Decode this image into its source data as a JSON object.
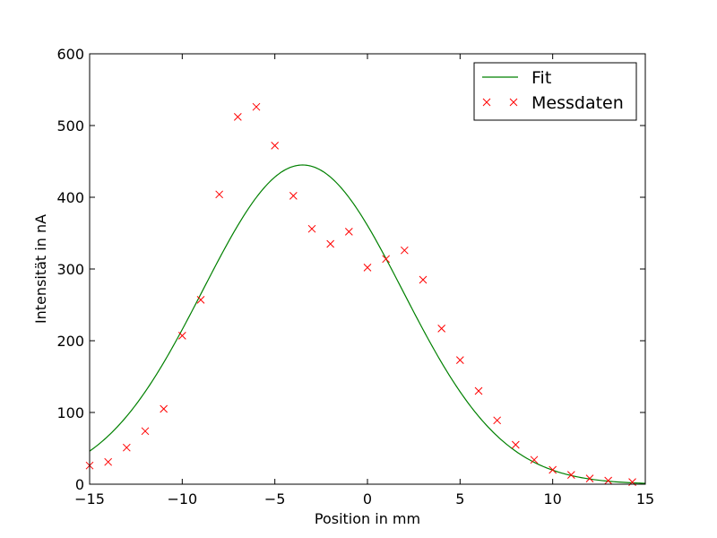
{
  "chart_data": {
    "type": "line",
    "xlabel": "Position in mm",
    "ylabel": "Intensität in nA",
    "xlim": [
      -15,
      15
    ],
    "ylim": [
      0,
      600
    ],
    "x_ticks": [
      "−15",
      "−10",
      "−5",
      "0",
      "5",
      "10",
      "15"
    ],
    "y_ticks": [
      "0",
      "100",
      "200",
      "300",
      "400",
      "500",
      "600"
    ],
    "grid": false,
    "legend_position": "top-right",
    "series": [
      {
        "name": "Fit",
        "style": "line",
        "color": "#008000",
        "model": "gaussian",
        "amplitude": 445,
        "center": -3.5,
        "sigma": 5.4,
        "offset": 0
      },
      {
        "name": "Messdaten",
        "style": "x-markers",
        "color": "#ff0000",
        "x": [
          -15,
          -14,
          -13,
          -12,
          -11,
          -10,
          -9,
          -8,
          -7,
          -6,
          -5,
          -4,
          -3,
          -2,
          -1,
          0,
          1,
          2,
          3,
          4,
          5,
          6,
          7,
          8,
          9,
          10,
          11,
          12,
          13,
          14.3
        ],
        "y": [
          26,
          31,
          51,
          74,
          105,
          207,
          257,
          404,
          512,
          526,
          472,
          402,
          356,
          335,
          352,
          302,
          314,
          326,
          285,
          217,
          173,
          130,
          89,
          55,
          34,
          20,
          13,
          8,
          5,
          3
        ]
      }
    ]
  }
}
